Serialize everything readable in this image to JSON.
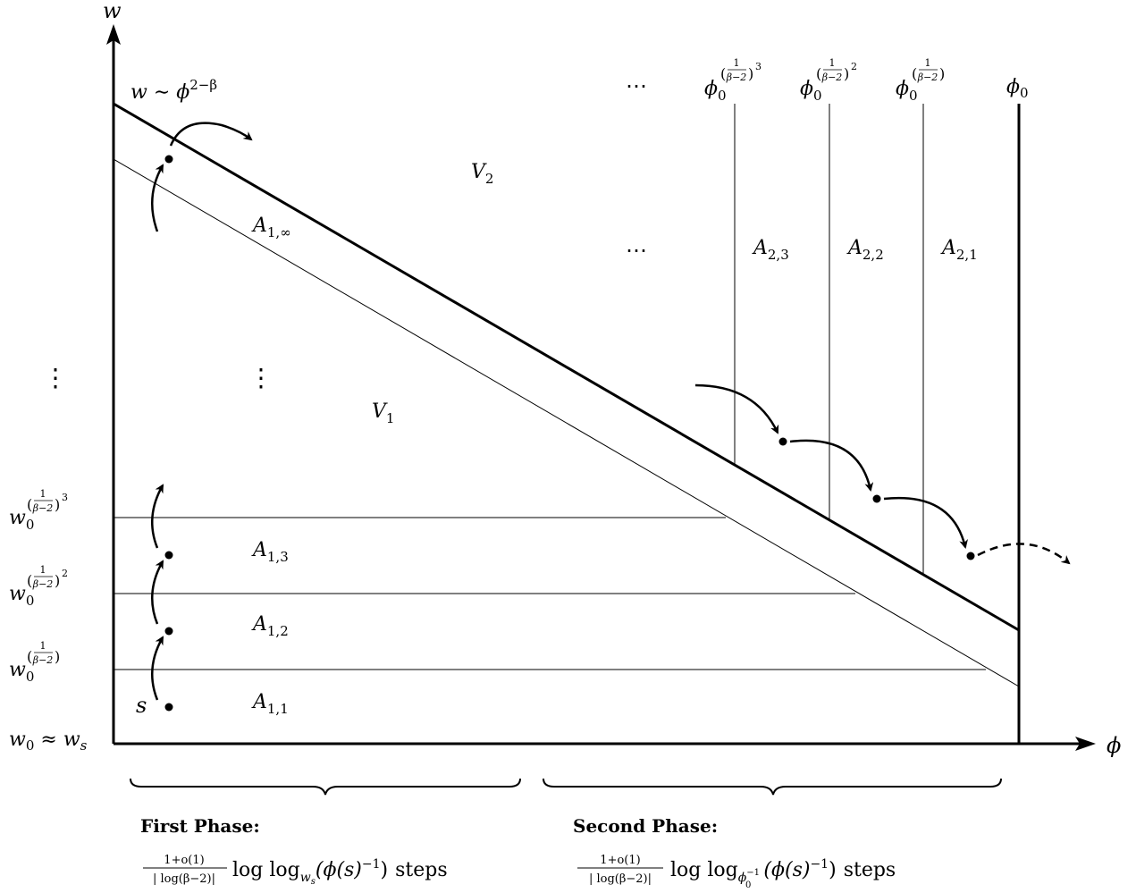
{
  "axes": {
    "y_axis_label": "w",
    "x_axis_label": "ϕ",
    "origin_label": {
      "main": "w",
      "sub": "0",
      "rel": " ≈ ",
      "rhs": "w",
      "rhs_sub": "s"
    },
    "top_line_label": {
      "lhs": "w ∼ ϕ",
      "exp": "2−β"
    },
    "phi0_label": {
      "main": "ϕ",
      "sub": "0"
    }
  },
  "w_ticks": [
    {
      "base": "w",
      "sub": "0",
      "exp_num": "1",
      "exp_den": "β−2",
      "power": "3"
    },
    {
      "base": "w",
      "sub": "0",
      "exp_num": "1",
      "exp_den": "β−2",
      "power": "2"
    },
    {
      "base": "w",
      "sub": "0",
      "exp_num": "1",
      "exp_den": "β−2",
      "power": ""
    }
  ],
  "phi_ticks": [
    {
      "base": "ϕ",
      "sub": "0",
      "exp_num": "1",
      "exp_den": "β−2",
      "power": "3"
    },
    {
      "base": "ϕ",
      "sub": "0",
      "exp_num": "1",
      "exp_den": "β−2",
      "power": "2"
    },
    {
      "base": "ϕ",
      "sub": "0",
      "exp_num": "1",
      "exp_den": "β−2",
      "power": ""
    }
  ],
  "regions": [
    {
      "main": "A",
      "sub": "1,∞"
    },
    {
      "main": "V",
      "sub": "2"
    },
    {
      "main": "V",
      "sub": "1"
    },
    {
      "main": "A",
      "sub": "1,3"
    },
    {
      "main": "A",
      "sub": "1,2"
    },
    {
      "main": "A",
      "sub": "1,1"
    },
    {
      "main": "A",
      "sub": "2,3"
    },
    {
      "main": "A",
      "sub": "2,2"
    },
    {
      "main": "A",
      "sub": "2,1"
    }
  ],
  "start_label": "s",
  "ellipsis": "⋯",
  "vellipsis": "⋮",
  "phases": [
    {
      "title": "First Phase:",
      "frac_num": "1+o(1)",
      "frac_den": "| log(β−2)|",
      "expr": "log log",
      "base_sub": "w",
      "base_sub2": "s",
      "arg": "(ϕ(s)",
      "arg_exp": "−1",
      "arg_close": ")",
      "steps": "steps"
    },
    {
      "title": "Second Phase:",
      "frac_num": "1+o(1)",
      "frac_den": "| log(β−2)|",
      "expr": "log log",
      "base_sub": "ϕ",
      "base_sub_exp": "−1",
      "base_sub2": "0",
      "arg": "(ϕ(s)",
      "arg_exp": "−1",
      "arg_close": ")",
      "steps": "steps"
    }
  ]
}
